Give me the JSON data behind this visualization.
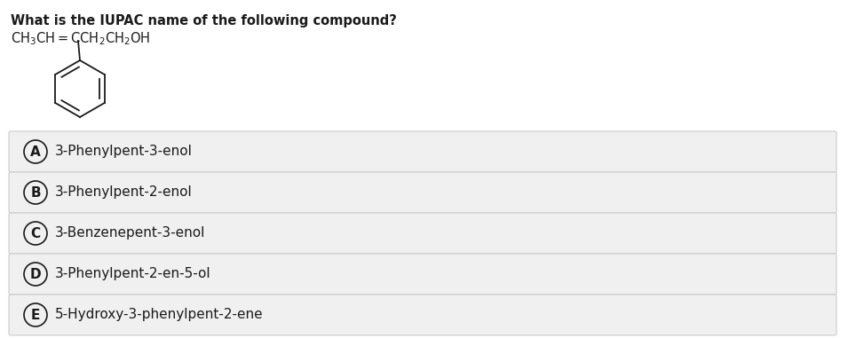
{
  "title": "What is the IUPAC name of the following compound?",
  "options": [
    {
      "label": "A",
      "text": "3-Phenylpent-3-enol"
    },
    {
      "label": "B",
      "text": "3-Phenylpent-2-enol"
    },
    {
      "label": "C",
      "text": "3-Benzenepent-3-enol"
    },
    {
      "label": "D",
      "text": "3-Phenylpent-2-en-5-ol"
    },
    {
      "label": "E",
      "text": "5-Hydroxy-3-phenylpent-2-ene"
    }
  ],
  "bg_color": "#ffffff",
  "option_bg_color": "#f0f0f0",
  "option_border_color": "#cccccc",
  "text_color": "#1a1a1a",
  "title_fontsize": 10.5,
  "formula_fontsize": 10.5,
  "option_fontsize": 11
}
